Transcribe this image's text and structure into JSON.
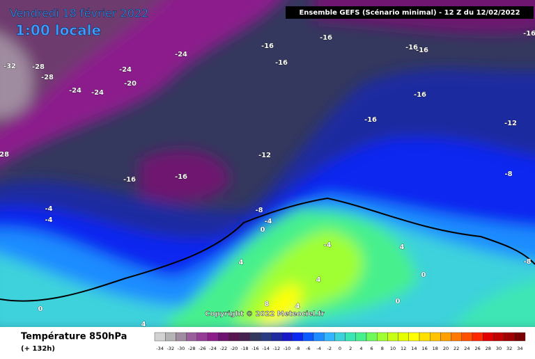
{
  "header": {
    "date": "Vendredi 18 février 2022",
    "time": "1:00 locale",
    "model": "Ensemble GEFS  (Scénario minimal) - 12 Z du 12/02/2022",
    "copyright": "Copyright © 2022 Meteociel.fr"
  },
  "footer": {
    "title": "Température 850hPa",
    "lead": "(+ 132h)"
  },
  "legend": {
    "ticks": [
      -34,
      -32,
      -30,
      -28,
      -26,
      -24,
      -22,
      -20,
      -18,
      -16,
      -14,
      -12,
      -10,
      -8,
      -6,
      -4,
      -2,
      0,
      2,
      4,
      6,
      8,
      10,
      12,
      14,
      16,
      18,
      20,
      22,
      24,
      26,
      28,
      30,
      32,
      34
    ],
    "colors": [
      "#d2d2d2",
      "#b4b4b4",
      "#a08ca0",
      "#9a5f9a",
      "#963c96",
      "#8c1e8c",
      "#6e1470",
      "#5a1450",
      "#46204e",
      "#34385e",
      "#2a3c80",
      "#1e2ca0",
      "#1818c8",
      "#0a28f0",
      "#0a5aff",
      "#1e8cff",
      "#32b4ff",
      "#3cd2dc",
      "#3ce6b4",
      "#46f08c",
      "#6efa5a",
      "#a0ff32",
      "#c8ff14",
      "#e6ff00",
      "#ffff00",
      "#ffe100",
      "#ffc300",
      "#ffa000",
      "#ff7800",
      "#ff5000",
      "#ff2800",
      "#e10000",
      "#c30000",
      "#a00000",
      "#780000"
    ]
  },
  "contour_labels": [
    "-32",
    "-28",
    "-28",
    "-24",
    "-24",
    "-20",
    "-24",
    "-24",
    "-28",
    "-16",
    "-16",
    "-16",
    "-16",
    "-16",
    "-16",
    "-16",
    "-12",
    "-12",
    "-16",
    "-16",
    "-8",
    "-8",
    "-4",
    "0",
    "-4",
    "-4",
    "4",
    "4",
    "-4",
    "4",
    "0",
    "8",
    "4",
    "0",
    "4",
    "-8",
    "-16",
    "0"
  ]
}
